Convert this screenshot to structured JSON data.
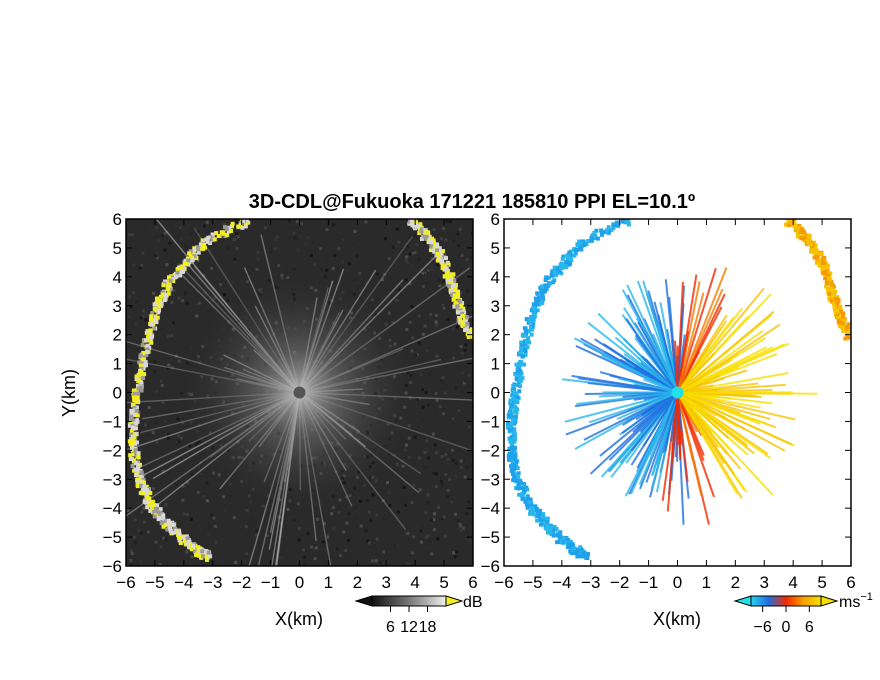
{
  "title": "3D-CDL@Fukuoka 171221 185810 PPI EL=10.1º",
  "colors": {
    "snr_background": "#2a2a2a",
    "snr_highlight": "#f2ee1f",
    "radar_site": "#555555",
    "velocity_site": "#22e0e8",
    "vel_neg_far": "#29b6ea",
    "vel_neg": "#1f6fe0",
    "vel_zero": "#f22a00",
    "vel_pos": "#f7c300"
  },
  "chart_data": [
    {
      "type": "heatmap",
      "name": "snr",
      "xlabel": "X(km)",
      "ylabel": "Y(km)",
      "xlim": [
        -6,
        6
      ],
      "ylim": [
        -6,
        6
      ],
      "xticks": [
        "−6",
        "−5",
        "−4",
        "−3",
        "−2",
        "−1",
        "0",
        "1",
        "2",
        "3",
        "4",
        "5",
        "6"
      ],
      "yticks": [
        "6",
        "5",
        "4",
        "3",
        "2",
        "1",
        "0",
        "−1",
        "−2",
        "−3",
        "−4",
        "−5",
        "−6"
      ],
      "colorbar": {
        "unit": "dB",
        "ticks": [
          "6",
          "12",
          "18"
        ],
        "range": [
          0,
          24
        ]
      }
    },
    {
      "type": "heatmap",
      "name": "doppler_velocity",
      "xlabel": "X(km)",
      "xlim": [
        -6,
        6
      ],
      "ylim": [
        -6,
        6
      ],
      "xticks": [
        "−6",
        "−5",
        "−4",
        "−3",
        "−2",
        "−1",
        "0",
        "1",
        "2",
        "3",
        "4",
        "5",
        "6"
      ],
      "yticks": [
        "6",
        "5",
        "4",
        "3",
        "2",
        "1",
        "0",
        "−1",
        "−2",
        "−3",
        "−4",
        "−5",
        "−6"
      ],
      "colorbar": {
        "unit_base": "ms",
        "unit_exp": "−1",
        "ticks": [
          "−6",
          "0",
          "6"
        ],
        "range": [
          -9,
          9
        ]
      }
    }
  ]
}
